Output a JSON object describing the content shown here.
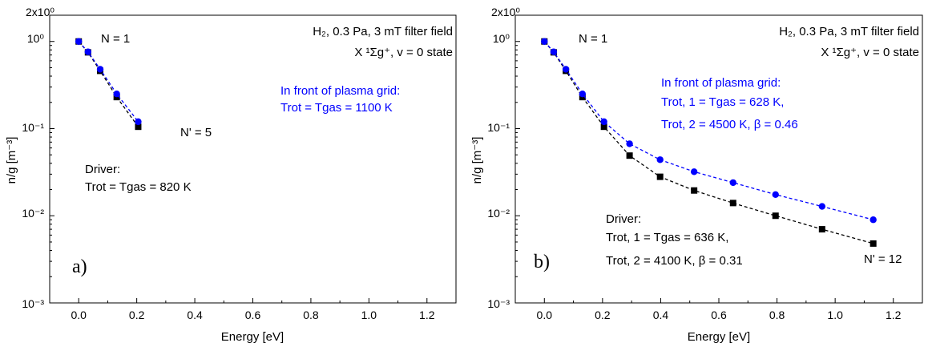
{
  "chart_data": [
    {
      "type": "scatter",
      "panel_label": "a)",
      "xlabel": "Energy [eV]",
      "ylabel": "n/g [m⁻³]",
      "xlim": [
        -0.1,
        1.3
      ],
      "ylim": [
        0.001,
        2
      ],
      "yscale": "log",
      "x_ticks": [
        "0.0",
        "0.2",
        "0.4",
        "0.6",
        "0.8",
        "1.0",
        "1.2"
      ],
      "y_ticks": [
        "10⁻³",
        "10⁻²",
        "10⁻¹",
        "10⁰",
        "2x10⁰"
      ],
      "series": [
        {
          "name": "Driver",
          "color": "#000000",
          "marker": "square",
          "x": [
            0.0,
            0.032,
            0.074,
            0.131,
            0.205
          ],
          "y": [
            1.0,
            0.75,
            0.46,
            0.23,
            0.105
          ]
        },
        {
          "name": "In front of plasma grid",
          "color": "#0000ff",
          "marker": "circle",
          "x": [
            0.0,
            0.032,
            0.074,
            0.131,
            0.205
          ],
          "y": [
            1.0,
            0.76,
            0.48,
            0.25,
            0.12
          ]
        }
      ],
      "annotations": {
        "n_first": "N = 1",
        "n_last": "N' = 5",
        "conditions": "H₂, 0.3 Pa, 3 mT filter field",
        "state": "X ¹Σg⁺, v = 0 state",
        "grid_title": "In front of plasma grid:",
        "grid_line1": "Trot = Tgas = 1100 K",
        "driver_title": "Driver:",
        "driver_line1": "Trot = Tgas = 820 K"
      }
    },
    {
      "type": "scatter",
      "panel_label": "b)",
      "xlabel": "Energy [eV]",
      "ylabel": "n/g [m⁻³]",
      "xlim": [
        -0.1,
        1.3
      ],
      "ylim": [
        0.001,
        2
      ],
      "yscale": "log",
      "x_ticks": [
        "0.0",
        "0.2",
        "0.4",
        "0.6",
        "0.8",
        "1.0",
        "1.2"
      ],
      "y_ticks": [
        "10⁻³",
        "10⁻²",
        "10⁻¹",
        "10⁰",
        "2x10⁰"
      ],
      "series": [
        {
          "name": "Driver",
          "color": "#000000",
          "marker": "square",
          "x": [
            0.0,
            0.032,
            0.074,
            0.131,
            0.205,
            0.293,
            0.398,
            0.515,
            0.649,
            0.795,
            0.955,
            1.131
          ],
          "y": [
            1.0,
            0.75,
            0.46,
            0.23,
            0.105,
            0.049,
            0.028,
            0.0195,
            0.014,
            0.01,
            0.007,
            0.0048
          ]
        },
        {
          "name": "In front of plasma grid",
          "color": "#0000ff",
          "marker": "circle",
          "x": [
            0.0,
            0.032,
            0.074,
            0.131,
            0.205,
            0.293,
            0.398,
            0.515,
            0.649,
            0.795,
            0.955,
            1.131
          ],
          "y": [
            1.0,
            0.76,
            0.48,
            0.25,
            0.12,
            0.067,
            0.044,
            0.032,
            0.024,
            0.0175,
            0.0128,
            0.009
          ]
        }
      ],
      "annotations": {
        "n_first": "N = 1",
        "n_last": "N' = 12",
        "conditions": "H₂, 0.3 Pa, 3 mT filter field",
        "state": "X ¹Σg⁺, v = 0 state",
        "grid_title": "In front of plasma grid:",
        "grid_line1": "Trot, 1 = Tgas = 628 K,",
        "grid_line2": "Trot, 2 = 4500 K, β = 0.46",
        "driver_title": "Driver:",
        "driver_line1": "Trot, 1 = Tgas = 636 K,",
        "driver_line2": "Trot, 2 = 4100 K, β = 0.31"
      }
    }
  ]
}
